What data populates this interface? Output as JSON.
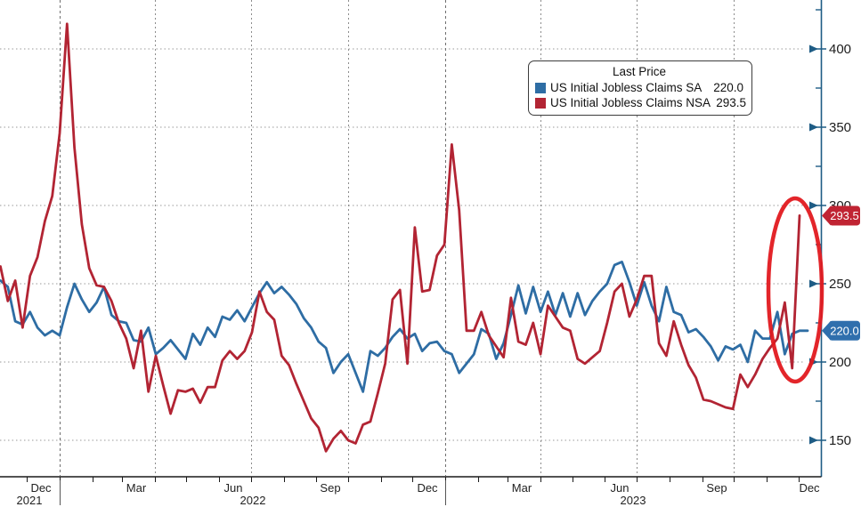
{
  "legend": {
    "title": "Last Price",
    "series": [
      {
        "label": "US Initial Jobless Claims SA",
        "value": "220.0"
      },
      {
        "label": "US Initial Jobless Claims NSA",
        "value": "293.5"
      }
    ]
  },
  "colors": {
    "sa_line": "#2e6da4",
    "nsa_line": "#b22433",
    "annotation_red": "#e2191f",
    "axis_blue": "#1e5c85",
    "grid_gray": "#9a9a9a",
    "badge_sa": "#2f6fad",
    "badge_nsa": "#c02433",
    "axis_text": "#1c1c1c",
    "x_text": "#222222"
  },
  "y_axis": {
    "major_ticks": [
      150,
      200,
      250,
      300,
      350,
      400
    ],
    "minor_ticks": [
      175,
      225,
      275,
      325,
      375,
      425
    ]
  },
  "x_axis": {
    "month_labels": [
      "Dec",
      "Mar",
      "Jun",
      "Sep",
      "Dec",
      "Mar",
      "Jun",
      "Sep",
      "Dec"
    ],
    "year_labels": [
      "2021",
      "2022",
      "2023"
    ]
  },
  "badges": [
    {
      "text": "293.5",
      "value": 293.5,
      "series": "nsa"
    },
    {
      "text": "220.0",
      "value": 220.0,
      "series": "sa"
    }
  ],
  "chart_data": {
    "type": "line",
    "frequency": "weekly",
    "x_range_visible": "Dec 2021 - Dec 2023",
    "x_tick_labels": [
      "Dec 2021",
      "Mar 2022",
      "Jun 2022",
      "Sep 2022",
      "Dec 2022",
      "Mar 2023",
      "Jun 2023",
      "Sep 2023",
      "Dec 2023"
    ],
    "y_major_ticks": [
      150,
      200,
      250,
      300,
      350,
      400
    ],
    "ylim": [
      127,
      431
    ],
    "grid": "dotted",
    "legend_position": "top-right-inset",
    "title": "Last Price",
    "series": [
      {
        "name": "US Initial Jobless Claims SA",
        "color": "#2e6da4",
        "last": 220.0,
        "values": [
          252,
          248,
          226,
          224,
          232,
          222,
          217,
          220,
          217,
          235,
          250,
          240,
          232,
          238,
          248,
          230,
          226,
          225,
          214,
          213,
          222,
          205,
          209,
          214,
          208,
          202,
          218,
          211,
          222,
          216,
          229,
          227,
          233,
          226,
          235,
          244,
          251,
          244,
          248,
          243,
          237,
          228,
          222,
          213,
          209,
          193,
          200,
          205,
          193,
          181,
          207,
          204,
          209,
          216,
          221,
          215,
          218,
          207,
          212,
          213,
          207,
          205,
          193,
          199,
          205,
          221,
          218,
          202,
          212,
          230,
          249,
          231,
          248,
          232,
          245,
          230,
          244,
          229,
          244,
          230,
          239,
          245,
          250,
          262,
          264,
          251,
          236,
          251,
          236,
          226,
          248,
          232,
          230,
          219,
          221,
          216,
          210,
          201,
          210,
          208,
          211,
          200,
          220,
          215,
          215,
          232,
          205,
          218,
          220
        ]
      },
      {
        "name": "US Initial Jobless Claims NSA",
        "color": "#b22433",
        "last": 293.5,
        "values": [
          261,
          239,
          252,
          222,
          255,
          267,
          290,
          306,
          346,
          416,
          337,
          288,
          260,
          249,
          248,
          239,
          225,
          215,
          196,
          220,
          181,
          204,
          185,
          167,
          182,
          181,
          183,
          174,
          184,
          184,
          201,
          207,
          202,
          207,
          219,
          245,
          232,
          227,
          204,
          198,
          186,
          175,
          164,
          158,
          143,
          151,
          156,
          150,
          148,
          160,
          162,
          180,
          199,
          240,
          246,
          199,
          286,
          245,
          246,
          268,
          275,
          339,
          297,
          220,
          220,
          232,
          217,
          210,
          203,
          241,
          213,
          211,
          225,
          205,
          236,
          229,
          222,
          220,
          202,
          199,
          203,
          207,
          225,
          245,
          250,
          229,
          240,
          255,
          255,
          212,
          204,
          226,
          211,
          198,
          190,
          176,
          175,
          173,
          171,
          170,
          192,
          184,
          192,
          202,
          209,
          215,
          238,
          196,
          293.5
        ]
      }
    ],
    "annotations": [
      {
        "type": "ellipse-highlight",
        "color": "#e2191f",
        "description": "red ellipse circling the final NSA spike up to 293.5"
      },
      {
        "type": "price-badge",
        "text": "293.5",
        "series": "nsa"
      },
      {
        "type": "price-badge",
        "text": "220.0",
        "series": "sa"
      }
    ]
  }
}
